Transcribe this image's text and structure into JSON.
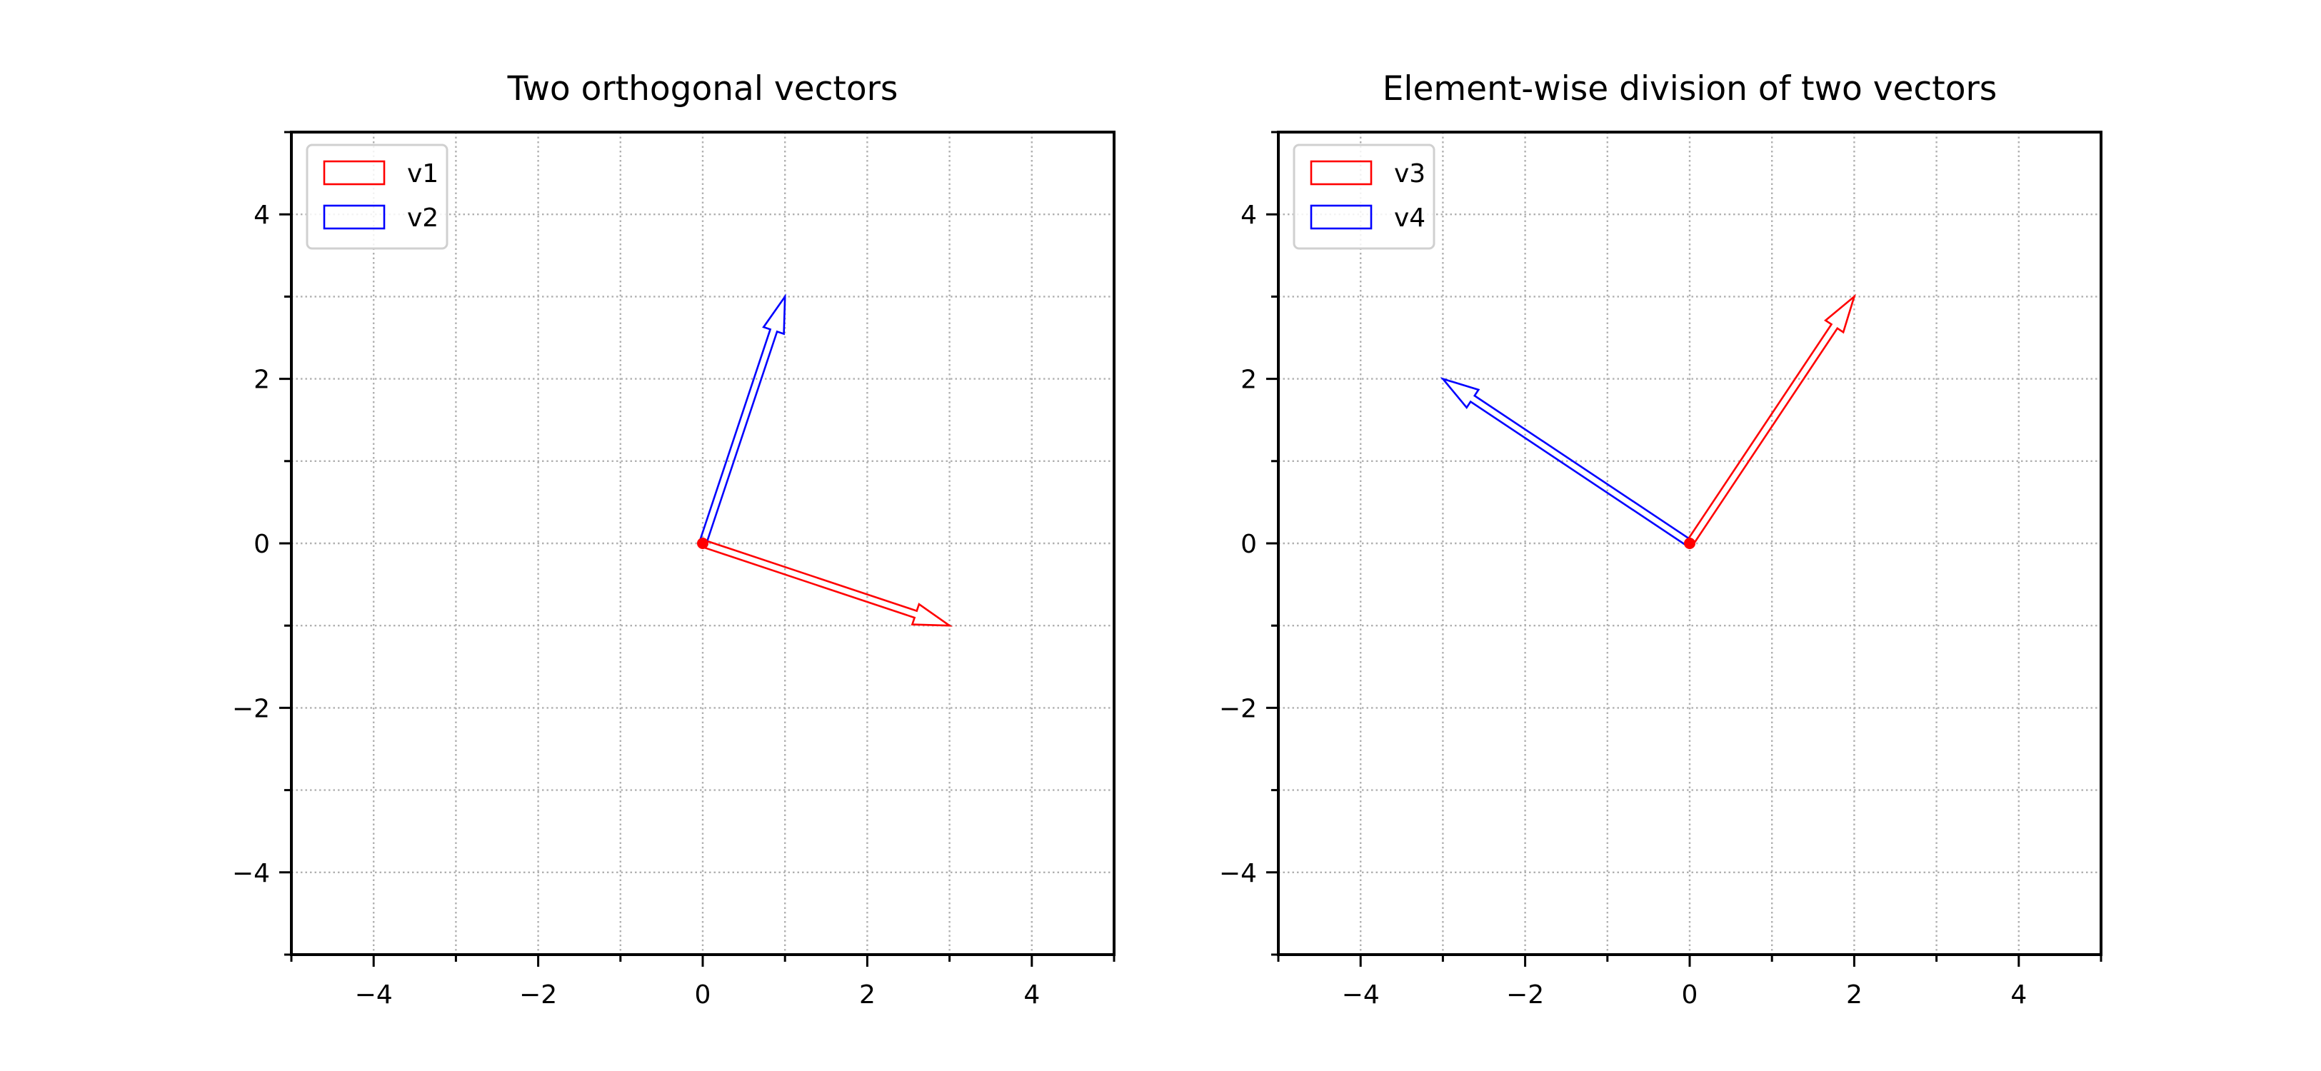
{
  "chart_data": [
    {
      "type": "vector",
      "title": "Two orthogonal vectors",
      "xlim": [
        -5,
        5
      ],
      "ylim": [
        -5,
        5
      ],
      "xticks": [
        -4,
        -2,
        0,
        2,
        4
      ],
      "yticks": [
        -4,
        -2,
        0,
        2,
        4
      ],
      "tick_labels": [
        "−4",
        "−2",
        "0",
        "2",
        "4"
      ],
      "minor_step": 1,
      "grid": true,
      "legend_position": "upper-left",
      "origin": [
        0,
        0
      ],
      "vectors": [
        {
          "name": "v1",
          "x": 3,
          "y": -1,
          "color": "#ff0000"
        },
        {
          "name": "v2",
          "x": 1,
          "y": 3,
          "color": "#0000ff"
        }
      ]
    },
    {
      "type": "vector",
      "title": "Element-wise division of two vectors",
      "xlim": [
        -5,
        5
      ],
      "ylim": [
        -5,
        5
      ],
      "xticks": [
        -4,
        -2,
        0,
        2,
        4
      ],
      "yticks": [
        -4,
        -2,
        0,
        2,
        4
      ],
      "tick_labels": [
        "−4",
        "−2",
        "0",
        "2",
        "4"
      ],
      "minor_step": 1,
      "grid": true,
      "legend_position": "upper-left",
      "origin": [
        0,
        0
      ],
      "vectors": [
        {
          "name": "v3",
          "x": 2,
          "y": 3,
          "color": "#ff0000"
        },
        {
          "name": "v4",
          "x": -3,
          "y": 2,
          "color": "#0000ff"
        }
      ]
    }
  ]
}
